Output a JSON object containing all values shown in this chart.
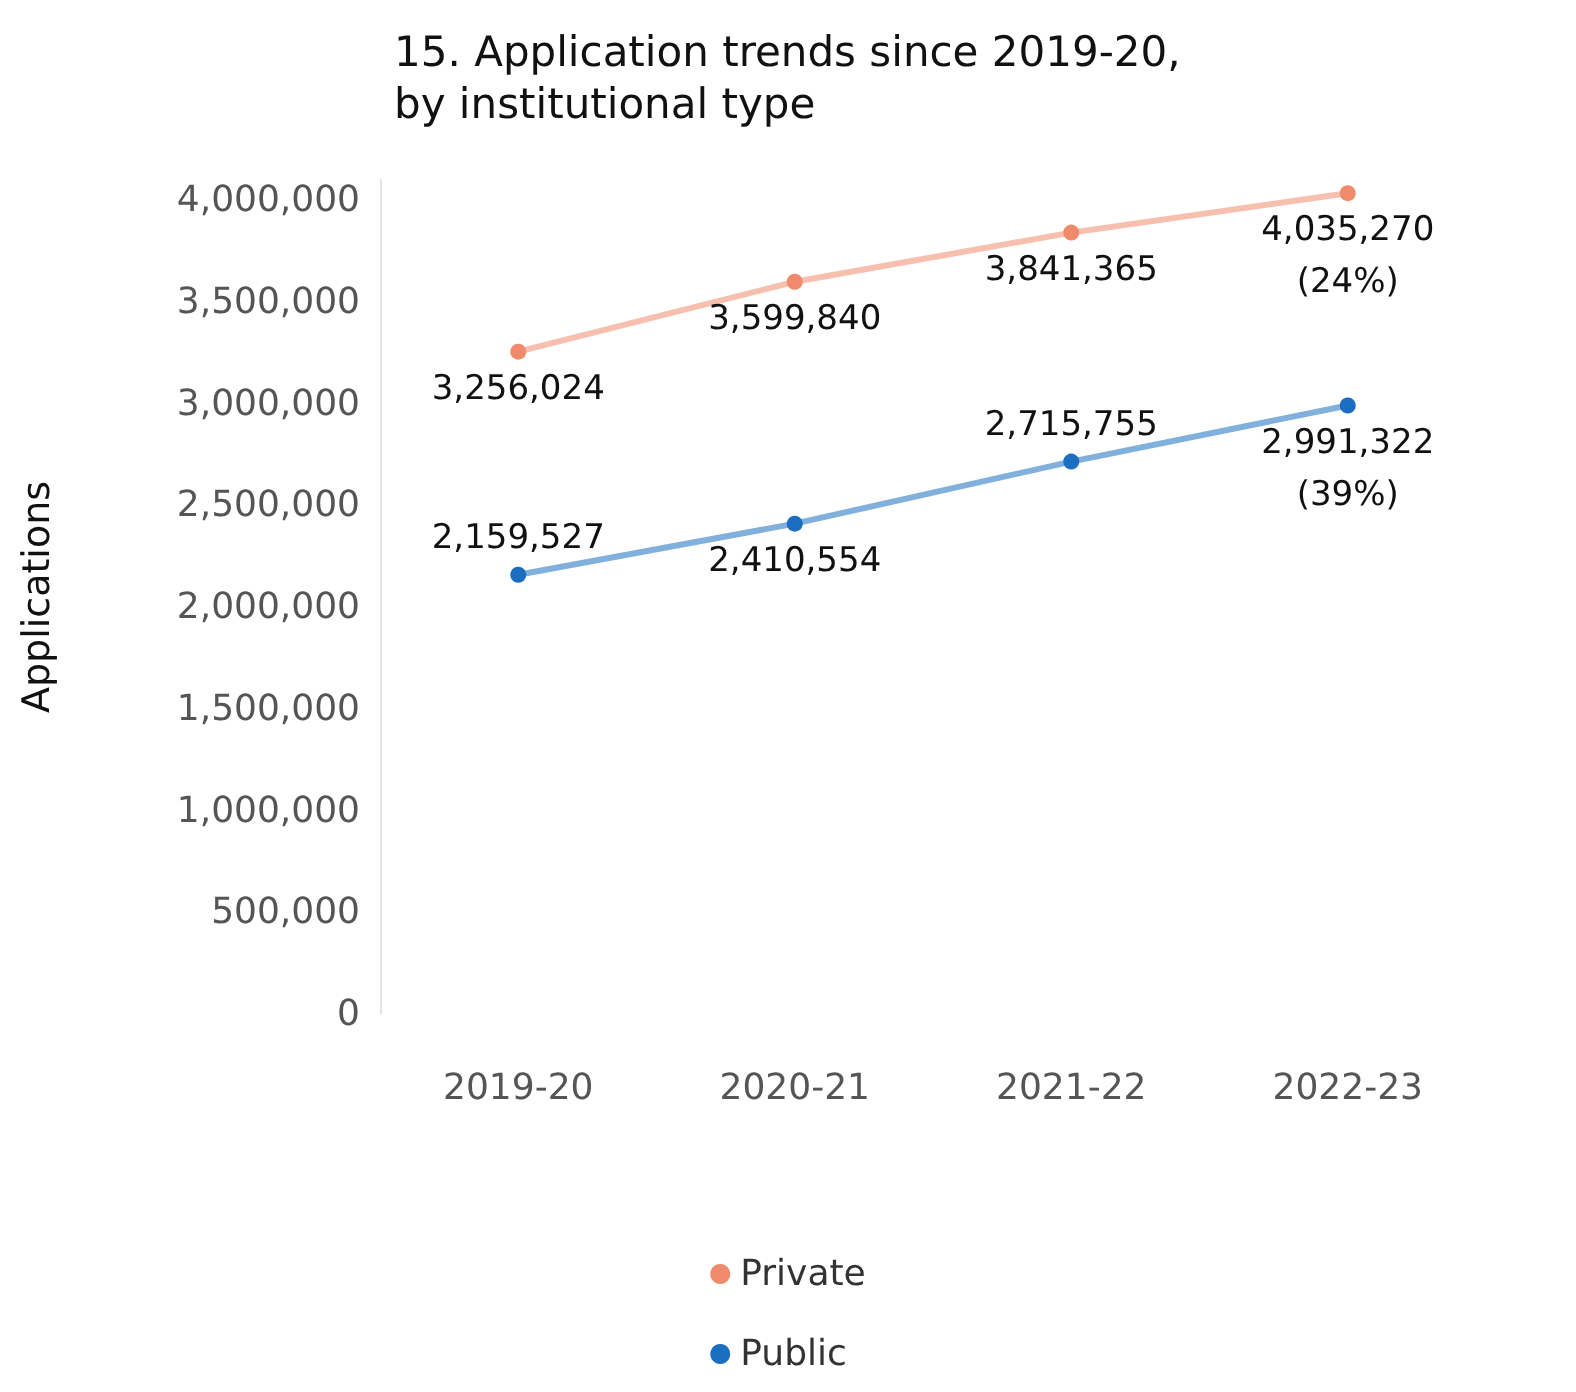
{
  "chart_data": {
    "type": "line",
    "title": "15. Application trends since 2019-20,\nby institutional type",
    "ylabel": "Applications",
    "categories": [
      "2019-20",
      "2020-21",
      "2021-22",
      "2022-23"
    ],
    "series": [
      {
        "name": "Private",
        "color": "#ef8b6c",
        "values": [
          3256024,
          3599840,
          3841365,
          4035270
        ],
        "value_labels": [
          "3,256,024",
          "3,599,840",
          "3,841,365",
          "4,035,270"
        ]
      },
      {
        "name": "Public",
        "color": "#1c6fc0",
        "values": [
          2159527,
          2410554,
          2715755,
          2991322
        ],
        "value_labels": [
          "2,159,527",
          "2,410,554",
          "2,715,755",
          "2,991,322"
        ]
      }
    ],
    "ylim": [
      0,
      4100000
    ],
    "yticks": [
      {
        "value": 0,
        "label": "0"
      },
      {
        "value": 500000,
        "label": "500,000"
      },
      {
        "value": 1000000,
        "label": "1,000,000"
      },
      {
        "value": 1500000,
        "label": "1,500,000"
      },
      {
        "value": 2000000,
        "label": "2,000,000"
      },
      {
        "value": 2500000,
        "label": "2,500,000"
      },
      {
        "value": 3000000,
        "label": "3,000,000"
      },
      {
        "value": 3500000,
        "label": "3,500,000"
      },
      {
        "value": 4000000,
        "label": "4,000,000"
      }
    ],
    "grid": false,
    "legend": "bottom",
    "marker": "circle",
    "line_style": "solid",
    "annotations": [
      {
        "text": "(24%)",
        "x": "2022-23",
        "y": 4035270
      },
      {
        "text": "(39%)",
        "x": "2022-23",
        "y": 2991322
      }
    ]
  }
}
